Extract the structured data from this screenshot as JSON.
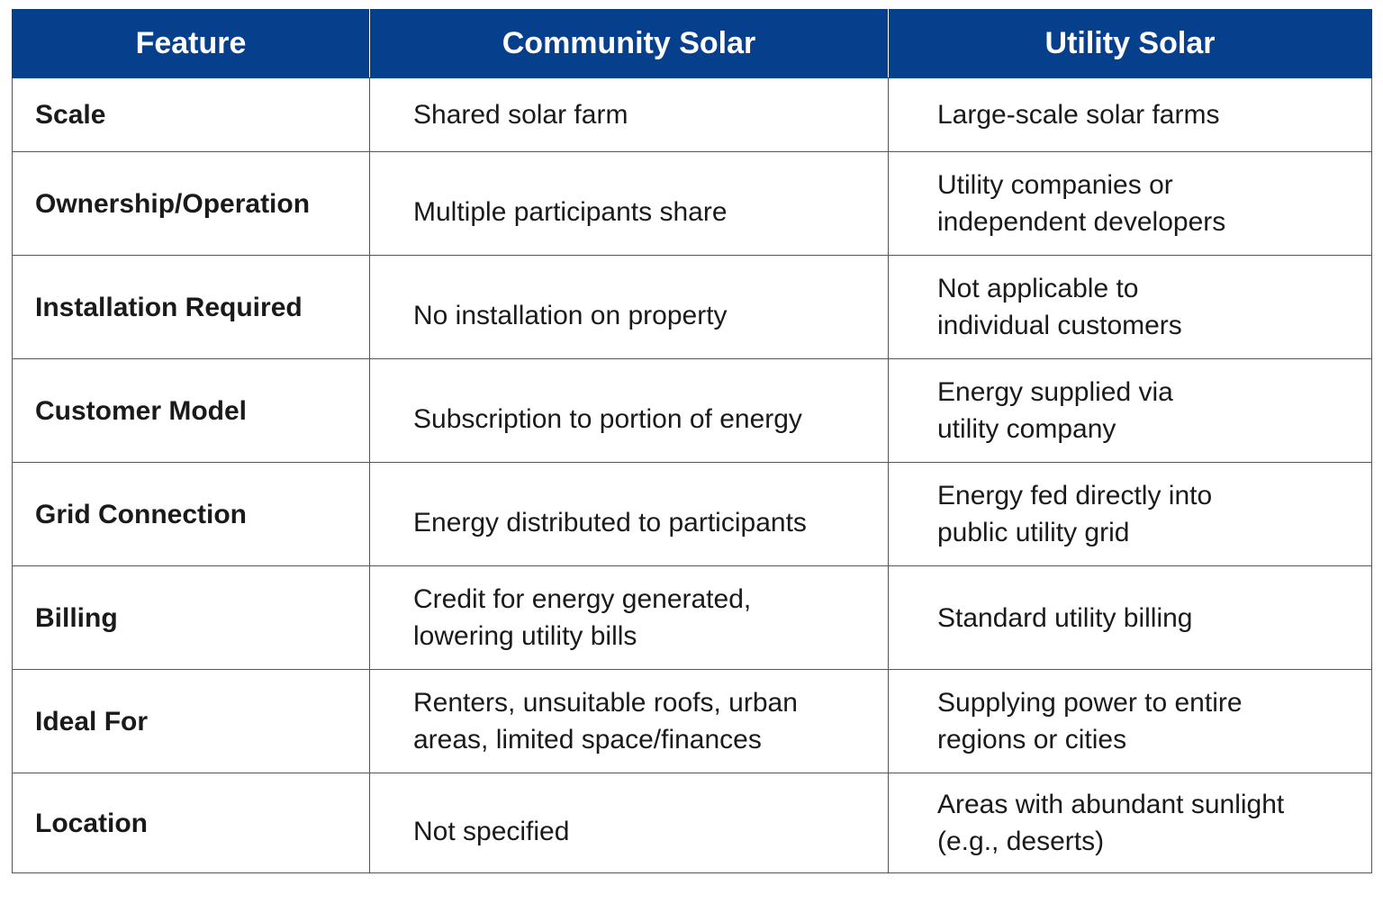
{
  "table": {
    "headers": [
      "Feature",
      "Community Solar",
      "Utility Solar"
    ],
    "rows": [
      {
        "feature": "Scale",
        "community": "Shared solar farm",
        "utility": "Large-scale solar farms"
      },
      {
        "feature": "Ownership/Operation",
        "community": "Multiple participants share",
        "utility": "Utility companies or independent developers"
      },
      {
        "feature": "Installation Required",
        "community": "No installation on property",
        "utility": "Not applicable to individual customers"
      },
      {
        "feature": "Customer Model",
        "community": "Subscription to portion of energy",
        "utility": "Energy supplied via utility company"
      },
      {
        "feature": "Grid Connection",
        "community": "Energy distributed to participants",
        "utility": "Energy fed directly into public utility grid"
      },
      {
        "feature": "Billing",
        "community": "Credit for energy generated, lowering utility bills",
        "utility": "Standard utility billing"
      },
      {
        "feature": "Ideal For",
        "community": "Renters, unsuitable roofs, urban areas, limited space/finances",
        "utility": "Supplying power to entire regions or cities"
      },
      {
        "feature": "Location",
        "community": "Not specified",
        "utility": "Areas with abundant sunlight (e.g., deserts)"
      }
    ]
  }
}
